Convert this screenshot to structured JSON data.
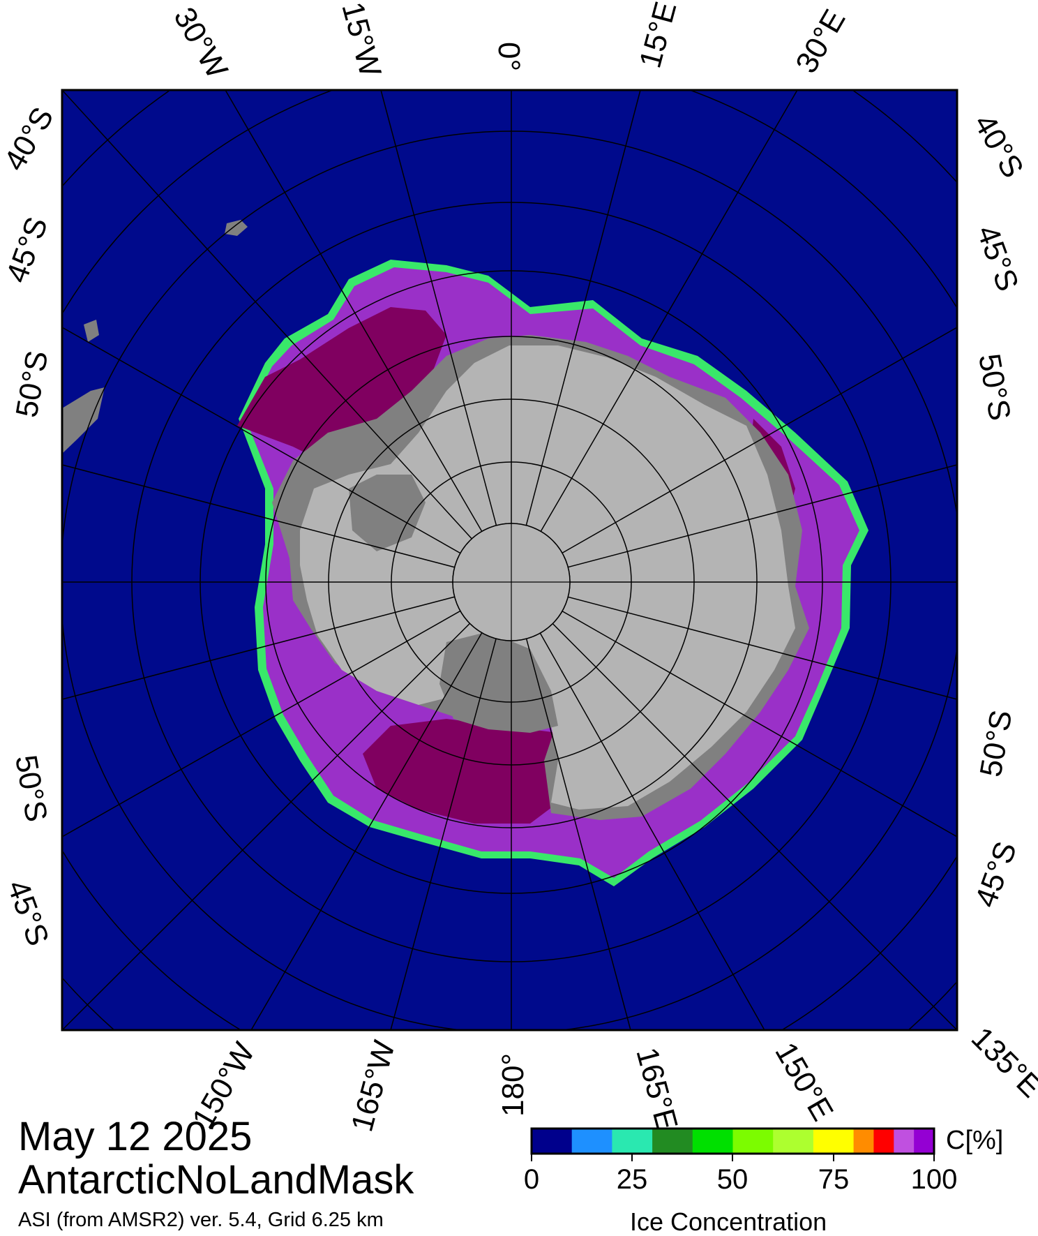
{
  "title": {
    "date": "May 12 2025",
    "grid_name": "AntarcticNoLandMask",
    "source": "ASI (from AMSR2) ver. 5.4,  Grid 6.25 km"
  },
  "legend": {
    "title": "Ice Concentration",
    "unit": "C[%]",
    "ticks": [
      "0",
      "25",
      "50",
      "75",
      "100"
    ],
    "bins": [
      {
        "range": "0-10",
        "color": "#00008c"
      },
      {
        "range": "10-20",
        "color": "#1e90ff"
      },
      {
        "range": "20-30",
        "color": "#2ae8b0"
      },
      {
        "range": "30-40",
        "color": "#228b22"
      },
      {
        "range": "40-50",
        "color": "#00e000"
      },
      {
        "range": "50-60",
        "color": "#7cfc00"
      },
      {
        "range": "60-70",
        "color": "#adff2f"
      },
      {
        "range": "70-80",
        "color": "#ffff00"
      },
      {
        "range": "80-85",
        "color": "#ff8c00"
      },
      {
        "range": "85-90",
        "color": "#ff0000"
      },
      {
        "range": "90-95",
        "color": "#c050e0"
      },
      {
        "range": "95-100",
        "color": "#9400d3"
      }
    ]
  },
  "colors": {
    "ocean": "#000a8c",
    "ice_full": "#800060",
    "ice_high": "#9a30c8",
    "land": "#b4b4b4",
    "ice_shelf": "#808080",
    "graticule": "#000000"
  },
  "graticule_labels": {
    "top": [
      "30°W",
      "15°W",
      "0°",
      "15°E",
      "30°E"
    ],
    "bottom": [
      "150°W",
      "165°W",
      "180°",
      "165°E",
      "150°E",
      "135°E"
    ],
    "left": [
      "40°S",
      "45°S",
      "50°S",
      "50°S",
      "45°S"
    ],
    "right": [
      "40°S",
      "45°S",
      "50°S",
      "50°S",
      "45°S"
    ]
  }
}
